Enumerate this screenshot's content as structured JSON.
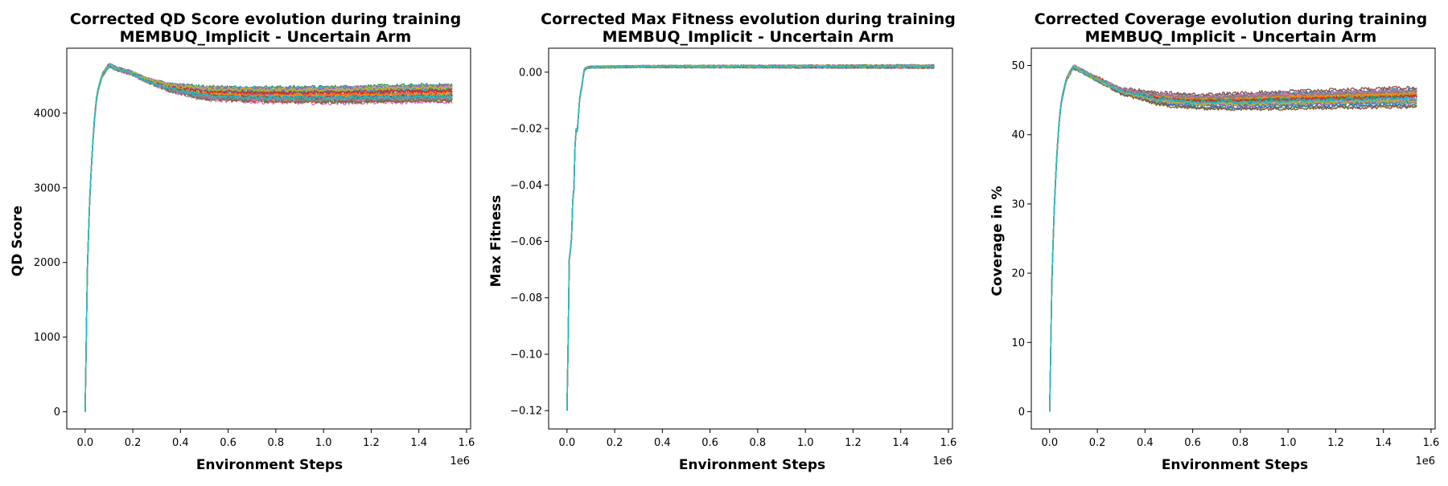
{
  "chart_data": [
    {
      "type": "line",
      "title_line1": "Corrected QD Score evolution during training",
      "title_line2": "MEMBUQ_Implicit - Uncertain Arm",
      "xlabel": "Environment Steps",
      "ylabel": "QD Score",
      "x_offset_label": "1e6",
      "xlim": [
        -0.077,
        1.617
      ],
      "ylim": [
        -230,
        4870
      ],
      "xticks": [
        0.0,
        0.2,
        0.4,
        0.6,
        0.8,
        1.0,
        1.2,
        1.4,
        1.6
      ],
      "xtick_labels": [
        "0.0",
        "0.2",
        "0.4",
        "0.6",
        "0.8",
        "1.0",
        "1.2",
        "1.4",
        "1.6"
      ],
      "yticks": [
        0,
        1000,
        2000,
        3000,
        4000
      ],
      "ytick_labels": [
        "0",
        "1000",
        "2000",
        "3000",
        "4000"
      ],
      "grid": false,
      "legend": "none",
      "n_series": 30,
      "x_end": 1.54,
      "mean_curve": [
        [
          0.0,
          0
        ],
        [
          0.005,
          1000
        ],
        [
          0.01,
          2000
        ],
        [
          0.02,
          2900
        ],
        [
          0.03,
          3500
        ],
        [
          0.04,
          3950
        ],
        [
          0.05,
          4250
        ],
        [
          0.07,
          4500
        ],
        [
          0.1,
          4640
        ],
        [
          0.13,
          4600
        ],
        [
          0.2,
          4530
        ],
        [
          0.25,
          4450
        ],
        [
          0.35,
          4350
        ],
        [
          0.5,
          4270
        ],
        [
          0.7,
          4250
        ],
        [
          1.0,
          4245
        ],
        [
          1.3,
          4260
        ],
        [
          1.54,
          4270
        ]
      ],
      "band": [
        [
          0.0,
          0
        ],
        [
          0.25,
          20
        ],
        [
          0.5,
          100
        ],
        [
          0.9,
          120
        ],
        [
          1.54,
          130
        ]
      ],
      "noise": 25
    },
    {
      "type": "line",
      "title_line1": "Corrected Max Fitness evolution during training",
      "title_line2": "MEMBUQ_Implicit - Uncertain Arm",
      "xlabel": "Environment Steps",
      "ylabel": "Max Fitness",
      "x_offset_label": "1e6",
      "xlim": [
        -0.077,
        1.617
      ],
      "ylim": [
        -0.1265,
        0.0085
      ],
      "xticks": [
        0.0,
        0.2,
        0.4,
        0.6,
        0.8,
        1.0,
        1.2,
        1.4,
        1.6
      ],
      "xtick_labels": [
        "0.0",
        "0.2",
        "0.4",
        "0.6",
        "0.8",
        "1.0",
        "1.2",
        "1.4",
        "1.6"
      ],
      "yticks": [
        -0.12,
        -0.1,
        -0.08,
        -0.06,
        -0.04,
        -0.02,
        0.0
      ],
      "ytick_labels": [
        "−0.12",
        "−0.10",
        "−0.08",
        "−0.06",
        "−0.04",
        "−0.02",
        "0.00"
      ],
      "grid": false,
      "legend": "none",
      "n_series": 30,
      "x_end": 1.54,
      "mean_curve": [
        [
          0.0,
          -0.12
        ],
        [
          0.005,
          -0.095
        ],
        [
          0.01,
          -0.064
        ],
        [
          0.015,
          -0.063
        ],
        [
          0.02,
          -0.058
        ],
        [
          0.025,
          -0.043
        ],
        [
          0.03,
          -0.041
        ],
        [
          0.035,
          -0.021
        ],
        [
          0.04,
          -0.02
        ],
        [
          0.045,
          -0.021
        ],
        [
          0.05,
          -0.012
        ],
        [
          0.055,
          -0.008
        ],
        [
          0.06,
          -0.006
        ],
        [
          0.065,
          -0.004
        ],
        [
          0.07,
          0.0005
        ],
        [
          0.08,
          0.0015
        ],
        [
          0.1,
          0.0018
        ],
        [
          0.3,
          0.002
        ],
        [
          0.8,
          0.002
        ],
        [
          1.54,
          0.002
        ]
      ],
      "band": [
        [
          0.0,
          0.0
        ],
        [
          1.54,
          0.0004
        ]
      ],
      "noise": 0.0004
    },
    {
      "type": "line",
      "title_line1": "Corrected Coverage evolution during training",
      "title_line2": "MEMBUQ_Implicit - Uncertain Arm",
      "xlabel": "Environment Steps",
      "ylabel": "Coverage in %",
      "x_offset_label": "1e6",
      "xlim": [
        -0.077,
        1.617
      ],
      "ylim": [
        -2.5,
        52.5
      ],
      "xticks": [
        0.0,
        0.2,
        0.4,
        0.6,
        0.8,
        1.0,
        1.2,
        1.4,
        1.6
      ],
      "xtick_labels": [
        "0.0",
        "0.2",
        "0.4",
        "0.6",
        "0.8",
        "1.0",
        "1.2",
        "1.4",
        "1.6"
      ],
      "yticks": [
        0,
        10,
        20,
        30,
        40,
        50
      ],
      "ytick_labels": [
        "0",
        "10",
        "20",
        "30",
        "40",
        "50"
      ],
      "grid": false,
      "legend": "none",
      "n_series": 30,
      "x_end": 1.54,
      "mean_curve": [
        [
          0.0,
          0
        ],
        [
          0.005,
          10
        ],
        [
          0.01,
          20
        ],
        [
          0.02,
          30
        ],
        [
          0.03,
          37
        ],
        [
          0.04,
          42
        ],
        [
          0.05,
          45
        ],
        [
          0.07,
          48
        ],
        [
          0.1,
          49.8
        ],
        [
          0.13,
          49.3
        ],
        [
          0.2,
          48
        ],
        [
          0.3,
          46.3
        ],
        [
          0.45,
          45.2
        ],
        [
          0.6,
          44.8
        ],
        [
          0.8,
          44.8
        ],
        [
          1.0,
          45
        ],
        [
          1.3,
          45.2
        ],
        [
          1.54,
          45.4
        ]
      ],
      "band": [
        [
          0.0,
          0
        ],
        [
          0.25,
          0.3
        ],
        [
          0.5,
          1.0
        ],
        [
          0.9,
          1.3
        ],
        [
          1.54,
          1.5
        ]
      ],
      "noise": 0.25
    }
  ],
  "series_colors": [
    "#1f77b4",
    "#ff7f0e",
    "#2ca02c",
    "#d62728",
    "#9467bd",
    "#8c564b",
    "#e377c2",
    "#7f7f7f",
    "#bcbd22",
    "#17becf"
  ]
}
